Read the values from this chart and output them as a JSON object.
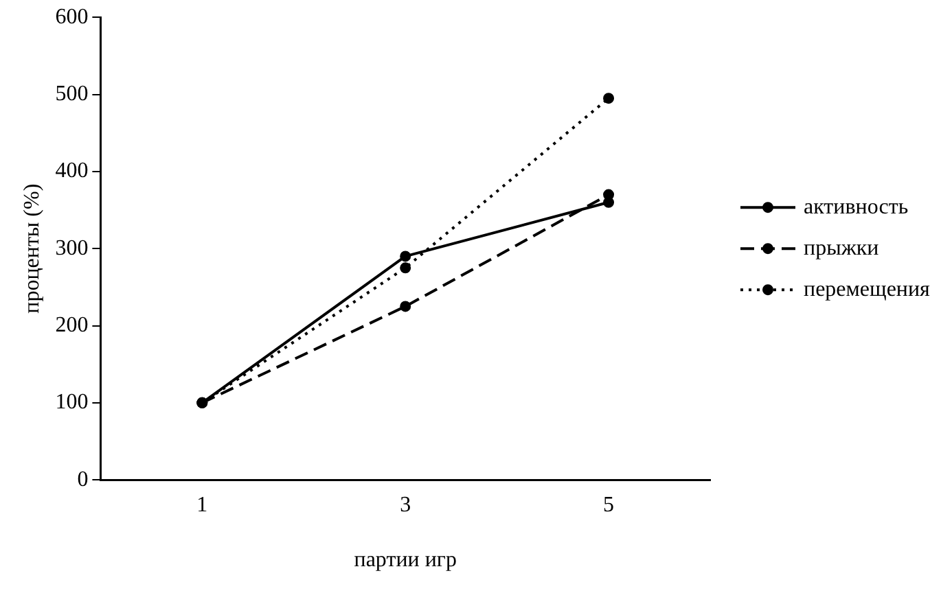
{
  "chart_data": {
    "type": "line",
    "xlabel": "партии игр",
    "ylabel": "проценты (%)",
    "categories": [
      "1",
      "3",
      "5"
    ],
    "series": [
      {
        "name": "активность",
        "color": "#000000",
        "values": [
          100,
          290,
          360
        ],
        "line_style": "solid"
      },
      {
        "name": "прыжки",
        "color": "#000000",
        "values": [
          100,
          225,
          370
        ],
        "line_style": "dashed"
      },
      {
        "name": "перемещения",
        "color": "#000000",
        "values": [
          100,
          275,
          495
        ],
        "line_style": "dotted"
      }
    ],
    "marker": "circle",
    "ylim": [
      0,
      600
    ],
    "yticks": [
      0,
      100,
      200,
      300,
      400,
      500,
      600
    ],
    "grid": false,
    "legend": "right"
  }
}
